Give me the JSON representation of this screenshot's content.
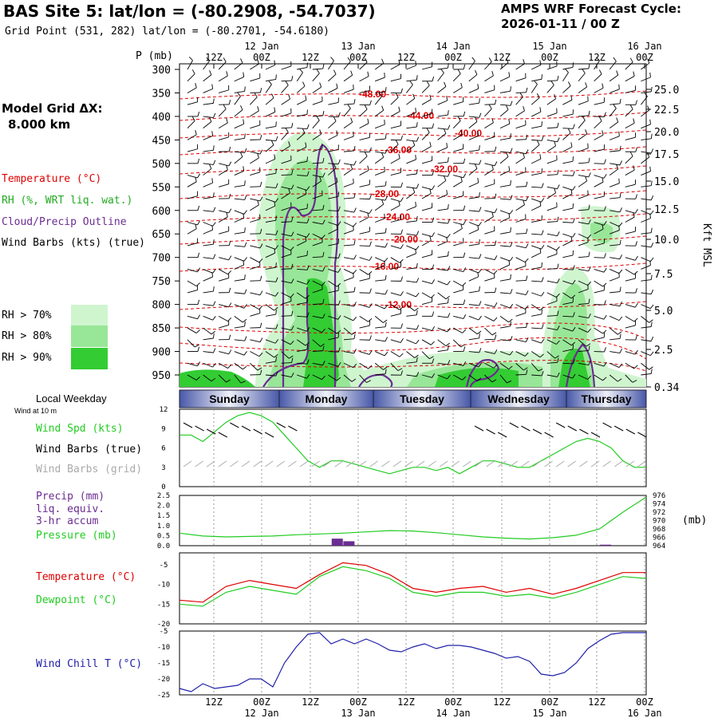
{
  "header": {
    "title": "BAS Site 5:  lat/lon = (-80.2908, -54.7037)",
    "subtitle": "Grid Point (531, 282) lat/lon = (-80.2701, -54.6180)",
    "cycle_line1": "AMPS WRF Forecast Cycle:",
    "cycle_line2": "2026-01-11 / 00  Z"
  },
  "left_labels": {
    "model_grid_line1": "Model Grid ΔX:",
    "model_grid_line2": "8.000 km",
    "temperature": "Temperature (°C)",
    "rh": "RH (%, WRT liq. wat.)",
    "cloud": "Cloud/Precip Outline",
    "wind": "Wind Barbs (kts) (true)",
    "rh70": "RH > 70%",
    "rh80": "RH > 80%",
    "rh90": "RH > 90%"
  },
  "colors": {
    "rh70": "#cff5cf",
    "rh80": "#98e698",
    "rh90": "#33cc33",
    "temp": "#dd0000",
    "cloud": "#6a2c91",
    "green": "#22cc22",
    "blue": "#2020aa",
    "purple": "#6a2c91",
    "grey": "#aaaaaa"
  },
  "time_axis": {
    "hour_labels": [
      "12Z",
      "00Z",
      "12Z",
      "00Z",
      "12Z",
      "00Z",
      "12Z",
      "00Z",
      "12Z",
      "00Z"
    ],
    "date_labels": [
      "12 Jan",
      "13 Jan",
      "14 Jan",
      "15 Jan",
      "16 Jan"
    ]
  },
  "weekday": {
    "title": "Local Weekday",
    "days": [
      "Sunday",
      "Monday",
      "Tuesday",
      "Wednesday",
      "Thursday"
    ]
  },
  "pressure_axis": {
    "title": "P (mb)",
    "levels": [
      "300",
      "350",
      "400",
      "450",
      "500",
      "550",
      "600",
      "650",
      "700",
      "750",
      "800",
      "850",
      "900",
      "950"
    ]
  },
  "height_axis": {
    "title": "Kft MSL",
    "ticks": [
      "25.0",
      "22.5",
      "20.0",
      "17.5",
      "15.0",
      "12.5",
      "10.0",
      "7.5",
      "5.0",
      "2.5",
      "0.34"
    ]
  },
  "isotherm_labels": [
    "-48.00",
    "-44.00",
    "-40.00",
    "-36.00",
    "-32.00",
    "-28.00",
    "-24.00",
    "-20.00",
    "-16.00",
    "-12.00"
  ],
  "panel1": {
    "sublabel": "Wind at 10 m",
    "leg_spd": "Wind Spd (kts)",
    "leg_barb_true": "Wind Barbs (true)",
    "leg_barb_grid": "Wind Barbs (grid)",
    "y_ticks": [
      "12",
      "9",
      "6",
      "3",
      "0"
    ]
  },
  "panel2": {
    "leg_precip1": "Precip (mm)",
    "leg_precip2": "liq. equiv.",
    "leg_precip3": "3-hr accum",
    "leg_pressure": "Pressure (mb)",
    "y_ticks": [
      "2.5",
      "2.0",
      "1.5",
      "1.0",
      "0.5",
      "0.0"
    ],
    "y2_ticks": [
      "976",
      "974",
      "972",
      "970",
      "968",
      "966",
      "964"
    ],
    "y2_unit": "(mb)"
  },
  "panel3": {
    "leg_temp": "Temperature (°C)",
    "leg_dew": "Dewpoint (°C)",
    "y_ticks": [
      "-5",
      "-10",
      "-15",
      "-20"
    ]
  },
  "panel4": {
    "leg_chill": "Wind Chill T (°C)",
    "y_ticks": [
      "-5",
      "-10",
      "-15",
      "-20",
      "-25"
    ]
  },
  "chart_data": [
    {
      "type": "line",
      "name": "wind_speed_10m",
      "ylabel": "Wind Spd (kts)",
      "ylim": [
        0,
        12
      ],
      "x_hours": [
        0,
        3,
        6,
        9,
        12,
        15,
        18,
        21,
        24,
        27,
        30,
        33,
        36,
        39,
        42,
        45,
        48,
        51,
        54,
        57,
        60,
        63,
        66,
        69,
        72,
        75,
        78,
        81,
        84,
        87,
        90,
        93,
        96,
        99,
        102,
        105,
        108,
        111,
        114,
        117,
        120
      ],
      "values": [
        8,
        8,
        7,
        8.5,
        10,
        11,
        11.5,
        11,
        10,
        8,
        6,
        4,
        3,
        4,
        4,
        3.5,
        3,
        2.5,
        2,
        2.5,
        3,
        3,
        2.5,
        3,
        2,
        3,
        4,
        4,
        3.5,
        3,
        3,
        4,
        5,
        6,
        7,
        7.5,
        7,
        6,
        4,
        3,
        3
      ]
    },
    {
      "type": "bar",
      "name": "precip_3hr_mm",
      "ylim": [
        0,
        2.5
      ],
      "bars": [
        {
          "x_hours": 42,
          "value": 0.35
        },
        {
          "x_hours": 45,
          "value": 0.22
        },
        {
          "x_hours": 111,
          "value": 0.05
        }
      ]
    },
    {
      "type": "line",
      "name": "surface_pressure_mb",
      "ylim": [
        964,
        976
      ],
      "x_hours": [
        0,
        6,
        12,
        18,
        24,
        30,
        36,
        42,
        48,
        54,
        60,
        66,
        72,
        78,
        84,
        90,
        96,
        102,
        108,
        114,
        120
      ],
      "values": [
        967,
        966.3,
        966.1,
        966.2,
        966.3,
        966.6,
        966.8,
        967,
        967.3,
        967.6,
        967.5,
        967.1,
        966.6,
        966.1,
        965.8,
        965.6,
        965.9,
        966.5,
        968,
        972,
        975.6
      ]
    },
    {
      "type": "line",
      "name": "temperature_c",
      "ylim": [
        -20,
        -2
      ],
      "x_hours": [
        0,
        6,
        12,
        18,
        24,
        30,
        36,
        42,
        48,
        54,
        60,
        66,
        72,
        78,
        84,
        90,
        96,
        102,
        108,
        114,
        120
      ],
      "values": [
        -14,
        -14.5,
        -10.5,
        -9,
        -10,
        -11,
        -7.5,
        -4.5,
        -5.2,
        -7.5,
        -11,
        -12,
        -11,
        -10.5,
        -12,
        -11,
        -12.5,
        -11,
        -9,
        -7,
        -7
      ]
    },
    {
      "type": "line",
      "name": "dewpoint_c",
      "ylim": [
        -20,
        -2
      ],
      "x_hours": [
        0,
        6,
        12,
        18,
        24,
        30,
        36,
        42,
        48,
        54,
        60,
        66,
        72,
        78,
        84,
        90,
        96,
        102,
        108,
        114,
        120
      ],
      "values": [
        -15,
        -15.5,
        -12,
        -10.5,
        -11.5,
        -12.5,
        -8,
        -5.5,
        -6.5,
        -8.5,
        -12,
        -13,
        -12,
        -12,
        -13,
        -12.5,
        -13.5,
        -12,
        -10,
        -8,
        -8.5
      ]
    },
    {
      "type": "line",
      "name": "wind_chill_c",
      "ylim": [
        -25,
        -5
      ],
      "x_hours": [
        0,
        3,
        6,
        9,
        12,
        15,
        18,
        21,
        24,
        27,
        30,
        33,
        36,
        39,
        42,
        45,
        48,
        51,
        54,
        57,
        60,
        63,
        66,
        69,
        72,
        75,
        78,
        81,
        84,
        87,
        90,
        93,
        96,
        99,
        102,
        105,
        108,
        111,
        114,
        117,
        120
      ],
      "values": [
        -23,
        -24,
        -21.5,
        -23,
        -22.5,
        -22,
        -20,
        -20,
        -22.5,
        -15,
        -10,
        -6,
        -5.5,
        -9,
        -7.5,
        -9,
        -7.5,
        -9,
        -11,
        -11.5,
        -10,
        -9,
        -10.5,
        -9.5,
        -9.5,
        -10,
        -11,
        -12,
        -13.5,
        -13,
        -14.5,
        -18.5,
        -19,
        -18,
        -15,
        -10.5,
        -8,
        -6,
        -5.5,
        -5.5,
        -5.5
      ]
    },
    {
      "type": "line",
      "name": "isotherms_cross_section",
      "series": [
        {
          "name": "-48.00"
        },
        {
          "name": "-44.00"
        },
        {
          "name": "-40.00"
        },
        {
          "name": "-36.00"
        },
        {
          "name": "-32.00"
        },
        {
          "name": "-28.00"
        },
        {
          "name": "-24.00"
        },
        {
          "name": "-20.00"
        },
        {
          "name": "-16.00"
        },
        {
          "name": "-12.00"
        }
      ],
      "ylim": [
        975,
        290
      ]
    }
  ]
}
